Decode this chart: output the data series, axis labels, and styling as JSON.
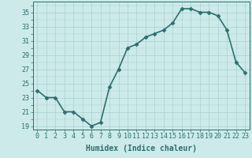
{
  "x": [
    0,
    1,
    2,
    3,
    4,
    5,
    6,
    7,
    8,
    9,
    10,
    11,
    12,
    13,
    14,
    15,
    16,
    17,
    18,
    19,
    20,
    21,
    22,
    23
  ],
  "y": [
    24,
    23,
    23,
    21,
    21,
    20,
    19,
    19.5,
    24.5,
    27,
    30,
    30.5,
    31.5,
    32,
    32.5,
    33.5,
    35.5,
    35.5,
    35,
    35,
    34.5,
    32.5,
    28,
    26.5
  ],
  "line_color": "#2e6e6e",
  "marker": "D",
  "marker_size": 2.5,
  "bg_color": "#cceaea",
  "grid_major_color": "#aacfcf",
  "grid_minor_color": "#bbdddd",
  "tick_color": "#2e6e6e",
  "xlabel": "Humidex (Indice chaleur)",
  "xlabel_fontsize": 7,
  "ylabel_ticks": [
    19,
    21,
    23,
    25,
    27,
    29,
    31,
    33,
    35
  ],
  "ylim": [
    18.5,
    36.5
  ],
  "xlim": [
    -0.5,
    23.5
  ],
  "xtick_labels": [
    "0",
    "1",
    "2",
    "3",
    "4",
    "5",
    "6",
    "7",
    "8",
    "9",
    "10",
    "11",
    "12",
    "13",
    "14",
    "15",
    "16",
    "17",
    "18",
    "19",
    "20",
    "21",
    "22",
    "23"
  ],
  "font_color": "#2e6e6e",
  "tick_fontsize": 6,
  "linewidth": 1.2
}
